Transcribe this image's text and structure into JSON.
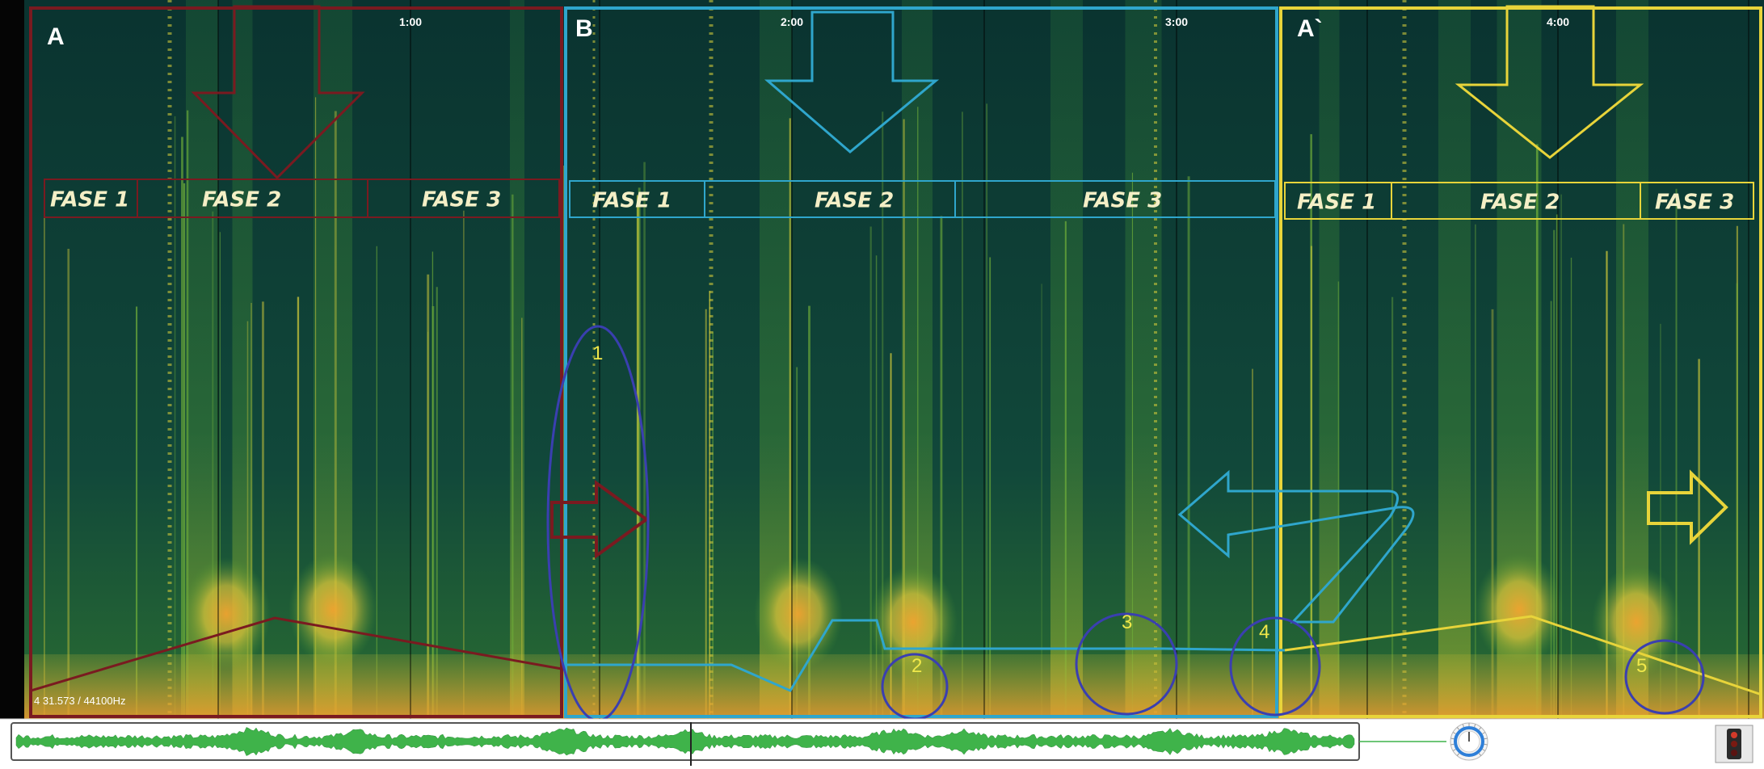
{
  "timeline": {
    "markers": [
      "1:00",
      "2:00",
      "3:00",
      "4:00"
    ]
  },
  "sections": [
    {
      "label": "A",
      "color": "#7a1a20",
      "phases": [
        "FASE 1",
        "FASE 2",
        "FASE 3"
      ]
    },
    {
      "label": "B",
      "color": "#2fa6cc",
      "phases": [
        "FASE 1",
        "FASE 2",
        "FASE 3"
      ]
    },
    {
      "label": "A`",
      "color": "#e8d43a",
      "phases": [
        "FASE 1",
        "FASE 2",
        "FASE 3"
      ]
    }
  ],
  "annotations": {
    "numbers": [
      "1",
      "2",
      "3",
      "4",
      "5"
    ],
    "circle_color": "#3a3fb0"
  },
  "status": {
    "readout": "4 31.573 / 44100Hz"
  },
  "colors": {
    "spectro_dark": "#0c3a34",
    "spectro_mid": "#1f6b45",
    "spectro_bright": "#e8d23a",
    "waveform": "#3fb34a"
  },
  "icons": {
    "knob": "volume-knob-icon",
    "menu": "traffic-light-menu-icon"
  }
}
